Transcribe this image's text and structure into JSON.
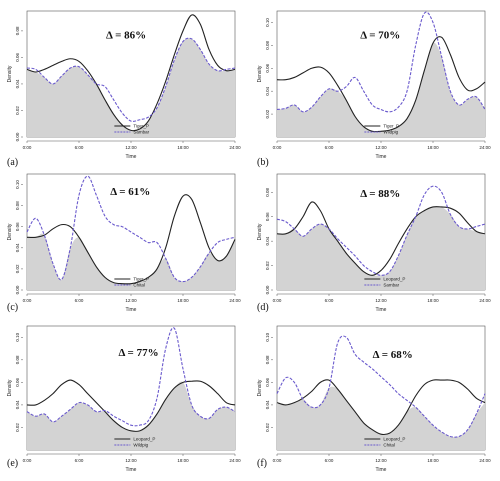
{
  "chart_data": [
    {
      "type": "line",
      "panel_label": "(a)",
      "overlap_label": "Δ = 86%",
      "xlabel": "Time",
      "ylabel": "Density",
      "xticks": [
        "0:00",
        "6:00",
        "12:00",
        "18:00",
        "24:00"
      ],
      "yticks": [
        "0.00",
        "0.02",
        "0.04",
        "0.06",
        "0.08"
      ],
      "ylim": [
        0,
        0.095
      ],
      "xlim": [
        0,
        24
      ],
      "series": [
        {
          "name": "Tiger_P",
          "style": "solid",
          "color": "#222222",
          "x": [
            0,
            1,
            2,
            3,
            4,
            5,
            6,
            7,
            8,
            9,
            10,
            11,
            12,
            13,
            14,
            15,
            16,
            17,
            18,
            19,
            20,
            21,
            22,
            23,
            24
          ],
          "y": [
            0.051,
            0.049,
            0.051,
            0.054,
            0.057,
            0.059,
            0.057,
            0.05,
            0.04,
            0.028,
            0.017,
            0.009,
            0.005,
            0.006,
            0.012,
            0.025,
            0.042,
            0.062,
            0.08,
            0.092,
            0.085,
            0.066,
            0.054,
            0.05,
            0.051
          ]
        },
        {
          "name": "Sambar",
          "style": "dashed",
          "color": "#6a5acd",
          "x": [
            0,
            1,
            2,
            3,
            4,
            5,
            6,
            7,
            8,
            9,
            10,
            11,
            12,
            13,
            14,
            15,
            16,
            17,
            18,
            19,
            20,
            21,
            22,
            23,
            24
          ],
          "y": [
            0.052,
            0.051,
            0.045,
            0.04,
            0.046,
            0.052,
            0.053,
            0.047,
            0.04,
            0.038,
            0.028,
            0.018,
            0.012,
            0.013,
            0.015,
            0.022,
            0.038,
            0.058,
            0.072,
            0.074,
            0.066,
            0.055,
            0.05,
            0.051,
            0.052
          ]
        }
      ]
    },
    {
      "type": "line",
      "panel_label": "(b)",
      "overlap_label": "Δ = 70%",
      "xlabel": "Time",
      "ylabel": "Density",
      "xticks": [
        "0:00",
        "6:00",
        "12:00",
        "18:00",
        "24:00"
      ],
      "yticks": [
        "0.02",
        "0.04",
        "0.06",
        "0.08",
        "0.10"
      ],
      "ylim": [
        0,
        0.11
      ],
      "xlim": [
        0,
        24
      ],
      "series": [
        {
          "name": "Tiger_P",
          "style": "solid",
          "color": "#222222",
          "x": [
            0,
            1,
            2,
            3,
            4,
            5,
            6,
            7,
            8,
            9,
            10,
            11,
            12,
            13,
            14,
            15,
            16,
            17,
            18,
            19,
            20,
            21,
            22,
            23,
            24
          ],
          "y": [
            0.05,
            0.05,
            0.052,
            0.056,
            0.06,
            0.061,
            0.056,
            0.045,
            0.032,
            0.018,
            0.009,
            0.005,
            0.005,
            0.006,
            0.009,
            0.016,
            0.032,
            0.058,
            0.082,
            0.087,
            0.072,
            0.052,
            0.041,
            0.042,
            0.048
          ]
        },
        {
          "name": "Wildpig",
          "style": "dashed",
          "color": "#6a5acd",
          "x": [
            0,
            1,
            2,
            3,
            4,
            5,
            6,
            7,
            8,
            9,
            10,
            11,
            12,
            13,
            14,
            15,
            16,
            17,
            18,
            19,
            20,
            21,
            22,
            23,
            24
          ],
          "y": [
            0.024,
            0.025,
            0.028,
            0.022,
            0.026,
            0.035,
            0.042,
            0.04,
            0.044,
            0.052,
            0.04,
            0.028,
            0.024,
            0.022,
            0.026,
            0.04,
            0.08,
            0.108,
            0.1,
            0.07,
            0.04,
            0.028,
            0.033,
            0.035,
            0.024
          ]
        }
      ]
    },
    {
      "type": "line",
      "panel_label": "(c)",
      "overlap_label": "Δ = 61%",
      "xlabel": "Time",
      "ylabel": "Density",
      "xticks": [
        "0:00",
        "6:00",
        "12:00",
        "18:00",
        "24:00"
      ],
      "yticks": [
        "0.00",
        "0.02",
        "0.04",
        "0.06",
        "0.08",
        "0.10"
      ],
      "ylim": [
        0,
        0.11
      ],
      "xlim": [
        0,
        24
      ],
      "series": [
        {
          "name": "Tiger_P",
          "style": "solid",
          "color": "#222222",
          "x": [
            0,
            1,
            2,
            3,
            4,
            5,
            6,
            7,
            8,
            9,
            10,
            11,
            12,
            13,
            14,
            15,
            16,
            17,
            18,
            19,
            20,
            21,
            22,
            23,
            24
          ],
          "y": [
            0.05,
            0.05,
            0.052,
            0.058,
            0.062,
            0.06,
            0.05,
            0.036,
            0.022,
            0.012,
            0.007,
            0.006,
            0.006,
            0.008,
            0.012,
            0.02,
            0.04,
            0.07,
            0.089,
            0.086,
            0.064,
            0.04,
            0.028,
            0.032,
            0.048
          ]
        },
        {
          "name": "Chital",
          "style": "dashed",
          "color": "#6a5acd",
          "x": [
            0,
            1,
            2,
            3,
            4,
            5,
            6,
            7,
            8,
            9,
            10,
            11,
            12,
            13,
            14,
            15,
            16,
            17,
            18,
            19,
            20,
            21,
            22,
            23,
            24
          ],
          "y": [
            0.055,
            0.068,
            0.052,
            0.025,
            0.01,
            0.04,
            0.09,
            0.108,
            0.09,
            0.07,
            0.062,
            0.06,
            0.055,
            0.05,
            0.045,
            0.045,
            0.03,
            0.012,
            0.008,
            0.012,
            0.022,
            0.035,
            0.045,
            0.048,
            0.05
          ]
        }
      ]
    },
    {
      "type": "line",
      "panel_label": "(d)",
      "overlap_label": "Δ = 88%",
      "xlabel": "Time",
      "ylabel": "Density",
      "xticks": [
        "0:00",
        "6:00",
        "12:00",
        "18:00",
        "24:00"
      ],
      "yticks": [
        "0.00",
        "0.02",
        "0.04",
        "0.06",
        "0.08"
      ],
      "ylim": [
        0,
        0.095
      ],
      "xlim": [
        0,
        24
      ],
      "series": [
        {
          "name": "Leopard_P",
          "style": "solid",
          "color": "#222222",
          "x": [
            0,
            1,
            2,
            3,
            4,
            5,
            6,
            7,
            8,
            9,
            10,
            11,
            12,
            13,
            14,
            15,
            16,
            17,
            18,
            19,
            20,
            21,
            22,
            23,
            24
          ],
          "y": [
            0.046,
            0.046,
            0.05,
            0.06,
            0.072,
            0.065,
            0.05,
            0.04,
            0.03,
            0.022,
            0.015,
            0.012,
            0.016,
            0.025,
            0.038,
            0.05,
            0.06,
            0.065,
            0.068,
            0.068,
            0.067,
            0.063,
            0.055,
            0.048,
            0.046
          ]
        },
        {
          "name": "Sambar",
          "style": "dashed",
          "color": "#6a5acd",
          "x": [
            0,
            1,
            2,
            3,
            4,
            5,
            6,
            7,
            8,
            9,
            10,
            11,
            12,
            13,
            14,
            15,
            16,
            17,
            18,
            19,
            20,
            21,
            22,
            23,
            24
          ],
          "y": [
            0.058,
            0.056,
            0.05,
            0.044,
            0.05,
            0.054,
            0.05,
            0.042,
            0.035,
            0.028,
            0.02,
            0.015,
            0.012,
            0.015,
            0.028,
            0.045,
            0.06,
            0.078,
            0.085,
            0.08,
            0.062,
            0.052,
            0.05,
            0.052,
            0.054
          ]
        }
      ]
    },
    {
      "type": "line",
      "panel_label": "(e)",
      "overlap_label": "Δ = 77%",
      "xlabel": "Time",
      "ylabel": "Density",
      "xticks": [
        "0:00",
        "6:00",
        "12:00",
        "18:00",
        "24:00"
      ],
      "yticks": [
        "0.02",
        "0.04",
        "0.06",
        "0.08",
        "0.10"
      ],
      "ylim": [
        0,
        0.11
      ],
      "xlim": [
        0,
        24
      ],
      "series": [
        {
          "name": "Leopard_P",
          "style": "solid",
          "color": "#222222",
          "x": [
            0,
            1,
            2,
            3,
            4,
            5,
            6,
            7,
            8,
            9,
            10,
            11,
            12,
            13,
            14,
            15,
            16,
            17,
            18,
            19,
            20,
            21,
            22,
            23,
            24
          ],
          "y": [
            0.04,
            0.04,
            0.044,
            0.05,
            0.058,
            0.062,
            0.058,
            0.05,
            0.042,
            0.034,
            0.026,
            0.02,
            0.017,
            0.017,
            0.022,
            0.032,
            0.045,
            0.055,
            0.06,
            0.061,
            0.061,
            0.057,
            0.05,
            0.042,
            0.04
          ]
        },
        {
          "name": "Wildpig",
          "style": "dashed",
          "color": "#6a5acd",
          "x": [
            0,
            1,
            2,
            3,
            4,
            5,
            6,
            7,
            8,
            9,
            10,
            11,
            12,
            13,
            14,
            15,
            16,
            17,
            18,
            19,
            20,
            21,
            22,
            23,
            24
          ],
          "y": [
            0.034,
            0.03,
            0.032,
            0.025,
            0.03,
            0.036,
            0.042,
            0.04,
            0.034,
            0.035,
            0.03,
            0.026,
            0.022,
            0.022,
            0.026,
            0.046,
            0.09,
            0.108,
            0.072,
            0.04,
            0.03,
            0.028,
            0.036,
            0.038,
            0.034
          ]
        }
      ]
    },
    {
      "type": "line",
      "panel_label": "(f)",
      "overlap_label": "Δ = 68%",
      "xlabel": "Time",
      "ylabel": "Density",
      "xticks": [
        "0:00",
        "6:00",
        "12:00",
        "18:00",
        "24:00"
      ],
      "yticks": [
        "0.02",
        "0.04",
        "0.06",
        "0.08",
        "0.10"
      ],
      "ylim": [
        0,
        0.11
      ],
      "xlim": [
        0,
        24
      ],
      "series": [
        {
          "name": "Leopard_P",
          "style": "solid",
          "color": "#222222",
          "x": [
            0,
            1,
            2,
            3,
            4,
            5,
            6,
            7,
            8,
            9,
            10,
            11,
            12,
            13,
            14,
            15,
            16,
            17,
            18,
            19,
            20,
            21,
            22,
            23,
            24
          ],
          "y": [
            0.042,
            0.04,
            0.042,
            0.046,
            0.052,
            0.06,
            0.062,
            0.054,
            0.044,
            0.034,
            0.024,
            0.018,
            0.014,
            0.015,
            0.022,
            0.034,
            0.048,
            0.058,
            0.062,
            0.062,
            0.062,
            0.06,
            0.054,
            0.046,
            0.042
          ]
        },
        {
          "name": "Chital",
          "style": "dashed",
          "color": "#6a5acd",
          "x": [
            0,
            1,
            2,
            3,
            4,
            5,
            6,
            7,
            8,
            9,
            10,
            11,
            12,
            13,
            14,
            15,
            16,
            17,
            18,
            19,
            20,
            21,
            22,
            23,
            24
          ],
          "y": [
            0.05,
            0.064,
            0.06,
            0.045,
            0.038,
            0.04,
            0.055,
            0.095,
            0.1,
            0.085,
            0.078,
            0.072,
            0.065,
            0.058,
            0.05,
            0.044,
            0.038,
            0.03,
            0.022,
            0.016,
            0.012,
            0.012,
            0.018,
            0.032,
            0.05
          ]
        }
      ]
    }
  ]
}
